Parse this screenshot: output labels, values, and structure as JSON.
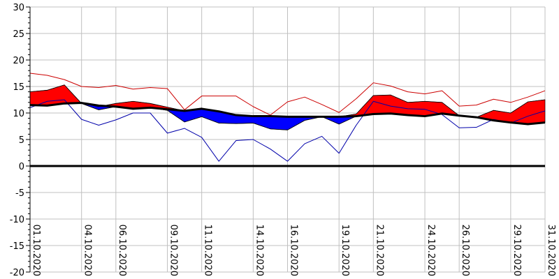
{
  "chart_data": {
    "type": "area",
    "title": "",
    "xlabel": "",
    "ylabel": "",
    "ylim": [
      -20,
      30
    ],
    "yticks": [
      -20,
      -15,
      -10,
      -5,
      0,
      5,
      10,
      15,
      20,
      25,
      30
    ],
    "grid": true,
    "legend": "none",
    "x": [
      "01.10.2020",
      "02.10.2020",
      "03.10.2020",
      "04.10.2020",
      "05.10.2020",
      "06.10.2020",
      "07.10.2020",
      "08.10.2020",
      "09.10.2020",
      "10.10.2020",
      "11.10.2020",
      "12.10.2020",
      "13.10.2020",
      "14.10.2020",
      "15.10.2020",
      "16.10.2020",
      "17.10.2020",
      "18.10.2020",
      "19.10.2020",
      "20.10.2020",
      "21.10.2020",
      "22.10.2020",
      "23.10.2020",
      "24.10.2020",
      "25.10.2020",
      "26.10.2020",
      "27.10.2020",
      "28.10.2020",
      "29.10.2020",
      "30.10.2020",
      "31.10.2020"
    ],
    "xtick_labels": [
      "01.10.2020",
      "04.10.2020",
      "06.10.2020",
      "09.10.2020",
      "11.10.2020",
      "14.10.2020",
      "16.10.2020",
      "19.10.2020",
      "21.10.2020",
      "24.10.2020",
      "26.10.2020",
      "29.10.2020",
      "31.10.2020"
    ],
    "series": [
      {
        "values": [
          11.5,
          11.4,
          11.8,
          11.9,
          11.4,
          11.2,
          10.8,
          11.0,
          10.7,
          10.4,
          10.8,
          10.3,
          9.6,
          9.4,
          9.4,
          9.3,
          9.3,
          9.3,
          9.3,
          9.4,
          9.8,
          9.9,
          9.6,
          9.4,
          9.9,
          9.5,
          9.2,
          8.6,
          8.2,
          7.9,
          8.2
        ]
      },
      {
        "values": [
          14.0,
          14.3,
          15.3,
          11.8,
          11.2,
          11.8,
          12.2,
          11.8,
          11.1,
          10.4,
          10.8,
          10.3,
          9.6,
          9.4,
          9.4,
          9.3,
          9.3,
          9.3,
          9.3,
          9.8,
          13.3,
          13.4,
          12.0,
          12.2,
          12.0,
          9.5,
          9.2,
          10.5,
          10.0,
          12.1,
          12.5
        ]
      },
      {
        "values": [
          11.5,
          11.4,
          11.8,
          11.8,
          10.6,
          11.2,
          10.8,
          11.0,
          10.5,
          8.3,
          9.3,
          8.1,
          8.0,
          8.1,
          7.0,
          6.8,
          8.6,
          9.3,
          7.9,
          9.4,
          9.8,
          9.9,
          9.6,
          9.4,
          9.9,
          9.5,
          9.2,
          8.6,
          8.2,
          7.9,
          8.2
        ]
      },
      {
        "values": [
          17.5,
          17.1,
          16.3,
          15.0,
          14.8,
          15.2,
          14.5,
          14.8,
          14.6,
          10.6,
          13.2,
          13.2,
          13.2,
          11.2,
          9.6,
          12.1,
          13.0,
          11.6,
          10.1,
          12.7,
          15.7,
          15.1,
          14.0,
          13.6,
          14.2,
          11.3,
          11.5,
          12.6,
          12.0,
          13.0,
          14.2
        ]
      },
      {
        "values": [
          11.0,
          12.2,
          12.5,
          8.8,
          7.7,
          8.7,
          10.0,
          10.0,
          6.2,
          7.1,
          5.4,
          0.9,
          4.8,
          5.0,
          3.2,
          0.9,
          4.2,
          5.6,
          2.4,
          7.7,
          12.2,
          11.3,
          10.8,
          10.7,
          9.7,
          7.2,
          7.3,
          8.8,
          8.1,
          9.4,
          10.4
        ]
      }
    ],
    "colors": {
      "mean_line": "#000000",
      "above_fill": "#ff0000",
      "below_fill": "#0000ff",
      "max_line": "#cc0000",
      "min_line": "#0000aa",
      "zero_line": "#000000",
      "grid": "#c0c0c0",
      "axis": "#000000"
    }
  }
}
